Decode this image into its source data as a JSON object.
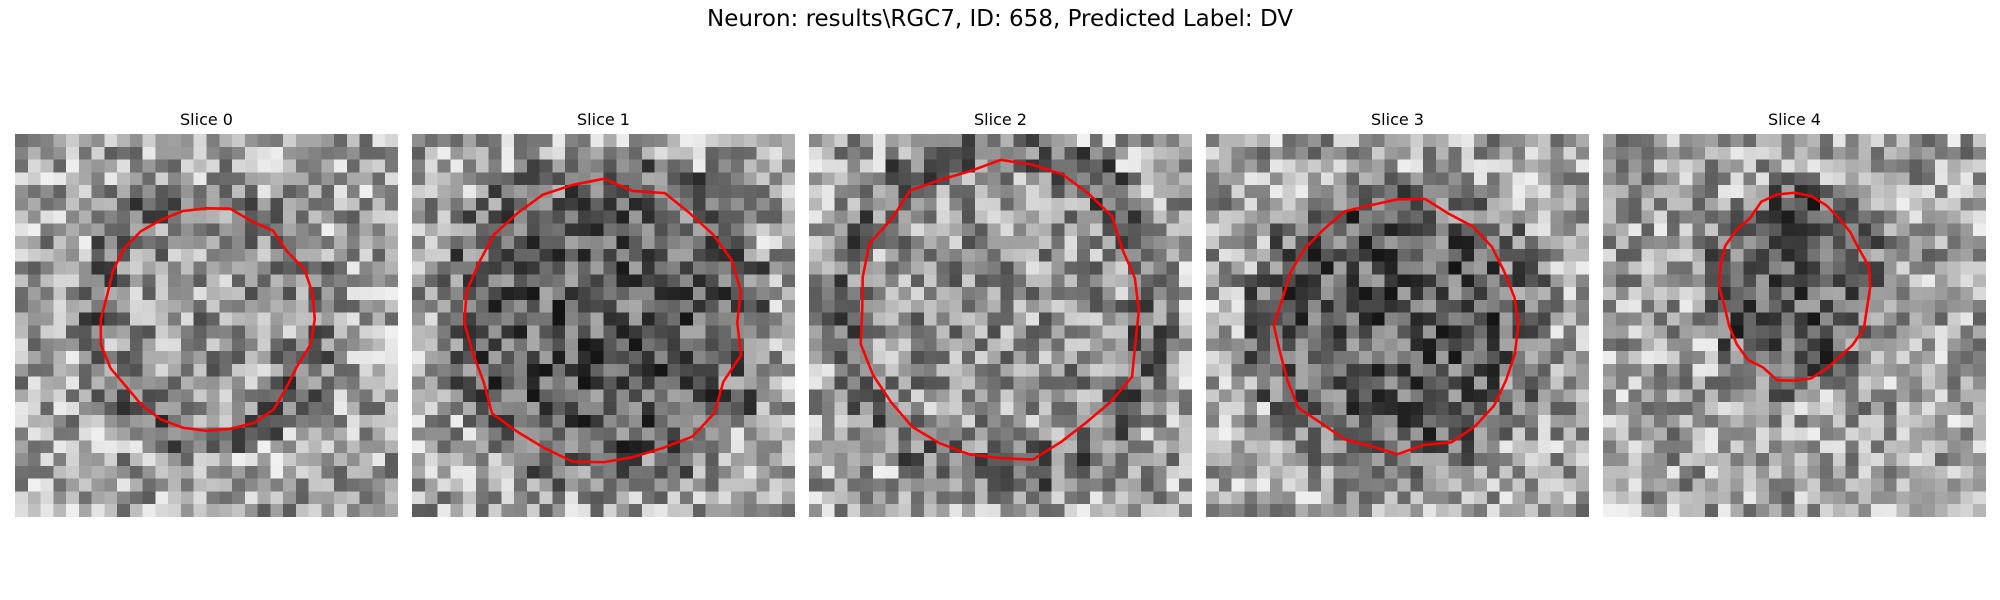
{
  "figure": {
    "suptitle": "Neuron: results\\RGC7, ID: 658, Predicted Label: DV"
  },
  "colors": {
    "background": "#ffffff",
    "contour": "#ff0000",
    "colormap": "gray"
  },
  "panels": [
    {
      "title": "Slice 0",
      "image": "grayscale-noise-patch-with-red-contour"
    },
    {
      "title": "Slice 1",
      "image": "grayscale-noise-patch-with-red-contour"
    },
    {
      "title": "Slice 2",
      "image": "grayscale-noise-patch-with-red-contour"
    },
    {
      "title": "Slice 3",
      "image": "grayscale-noise-patch-with-red-contour"
    },
    {
      "title": "Slice 4",
      "image": "grayscale-noise-patch-with-red-contour"
    }
  ]
}
